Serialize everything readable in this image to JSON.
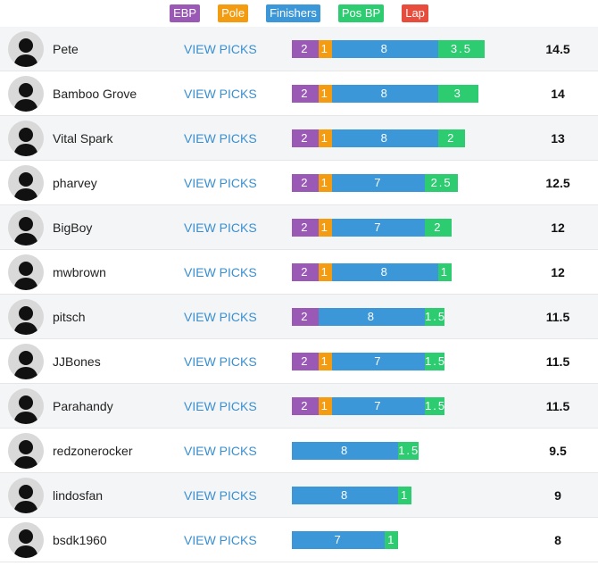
{
  "legend": [
    {
      "name": "EBP",
      "color": "#9b59b6"
    },
    {
      "name": "Pole",
      "color": "#f39c12"
    },
    {
      "name": "Finishers",
      "color": "#3b97d8"
    },
    {
      "name": "Pos BP",
      "color": "#2ecc71"
    },
    {
      "name": "Lap",
      "color": "#e74c3c"
    }
  ],
  "rows": [
    {
      "name": "Pete",
      "link": "VIEW PICKS",
      "segments": [
        2,
        1,
        8,
        3.5
      ],
      "total": 14.5
    },
    {
      "name": "Bamboo Grove",
      "link": "VIEW PICKS",
      "segments": [
        2,
        1,
        8,
        3
      ],
      "total": 14
    },
    {
      "name": "Vital Spark",
      "link": "VIEW PICKS",
      "segments": [
        2,
        1,
        8,
        2
      ],
      "total": 13
    },
    {
      "name": "pharvey",
      "link": "VIEW PICKS",
      "segments": [
        2,
        1,
        7,
        2.5
      ],
      "total": 12.5
    },
    {
      "name": "BigBoy",
      "link": "VIEW PICKS",
      "segments": [
        2,
        1,
        7,
        2
      ],
      "total": 12
    },
    {
      "name": "mwbrown",
      "link": "VIEW PICKS",
      "segments": [
        2,
        1,
        8,
        1
      ],
      "total": 12
    },
    {
      "name": "pitsch",
      "link": "VIEW PICKS",
      "segments": [
        2,
        null,
        8,
        1.5
      ],
      "total": 11.5
    },
    {
      "name": "JJBones",
      "link": "VIEW PICKS",
      "segments": [
        2,
        1,
        7,
        1.5
      ],
      "total": 11.5
    },
    {
      "name": "Parahandy",
      "link": "VIEW PICKS",
      "segments": [
        2,
        1,
        7,
        1.5
      ],
      "total": 11.5
    },
    {
      "name": "redzonerocker",
      "link": "VIEW PICKS",
      "segments": [
        null,
        null,
        8,
        1.5
      ],
      "total": 9.5
    },
    {
      "name": "lindosfan",
      "link": "VIEW PICKS",
      "segments": [
        null,
        null,
        8,
        1
      ],
      "total": 9
    },
    {
      "name": "bsdk1960",
      "link": "VIEW PICKS",
      "segments": [
        null,
        null,
        7,
        1
      ],
      "total": 8
    }
  ]
}
